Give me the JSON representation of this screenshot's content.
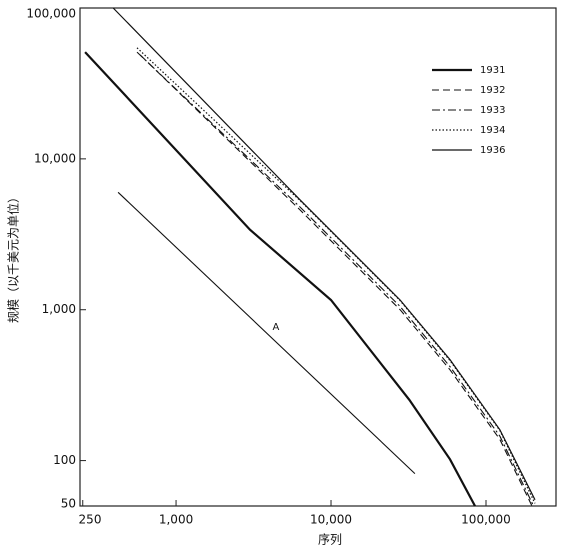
{
  "chart_data": {
    "type": "line",
    "x_label": "序列",
    "y_label": "规模（以千美元为单位）",
    "log_x": true,
    "log_y": true,
    "legend": "top-right",
    "xlim": [
      240,
      283000
    ],
    "ylim": [
      50,
      100000
    ],
    "xticks": [
      250,
      {
        "value": 1000,
        "label": "1,000"
      },
      {
        "value": 10000,
        "label": "10,000"
      },
      {
        "value": 100000,
        "label": "100,000"
      }
    ],
    "yticks": [
      50,
      100,
      {
        "value": 1000,
        "label": "1,000"
      },
      {
        "value": 10000,
        "label": "10,000"
      },
      {
        "value": 100000,
        "label": "100,000"
      }
    ],
    "series": [
      {
        "name": "1931",
        "color": "#111111",
        "width": 2.2,
        "dash": "none",
        "x": [
          259,
          3000,
          10000,
          32000,
          58600,
          85000
        ],
        "values": [
          51000,
          3390,
          1160,
          253,
          102,
          50
        ]
      },
      {
        "name": "1932",
        "color": "#111111",
        "width": 1.1,
        "dash": "7 4",
        "x": [
          586,
          6310,
          27900,
          58600,
          123000,
          198000
        ],
        "values": [
          48900,
          4590,
          1000,
          400,
          138,
          50
        ]
      },
      {
        "name": "1933",
        "color": "#111111",
        "width": 1.1,
        "dash": "8 3 2 3",
        "x": [
          560,
          6310,
          27900,
          58600,
          123000,
          203000
        ],
        "values": [
          51000,
          4800,
          1050,
          420,
          145,
          50
        ]
      },
      {
        "name": "1934",
        "color": "#111111",
        "width": 1.2,
        "dash": "1.5 2",
        "x": [
          560,
          6310,
          27900,
          58600,
          123000,
          207000
        ],
        "values": [
          54500,
          5300,
          1150,
          460,
          158,
          52
        ]
      },
      {
        "name": "1936",
        "color": "#111111",
        "width": 1.2,
        "dash": "none",
        "x": [
          393,
          6310,
          27900,
          58600,
          123000,
          207000
        ],
        "values": [
          100000,
          5350,
          1160,
          467,
          160,
          55
        ]
      }
    ],
    "reference_line": {
      "label": "A",
      "color": "#111111",
      "x": [
        423,
        34800
      ],
      "values": [
        6000,
        82
      ]
    }
  }
}
